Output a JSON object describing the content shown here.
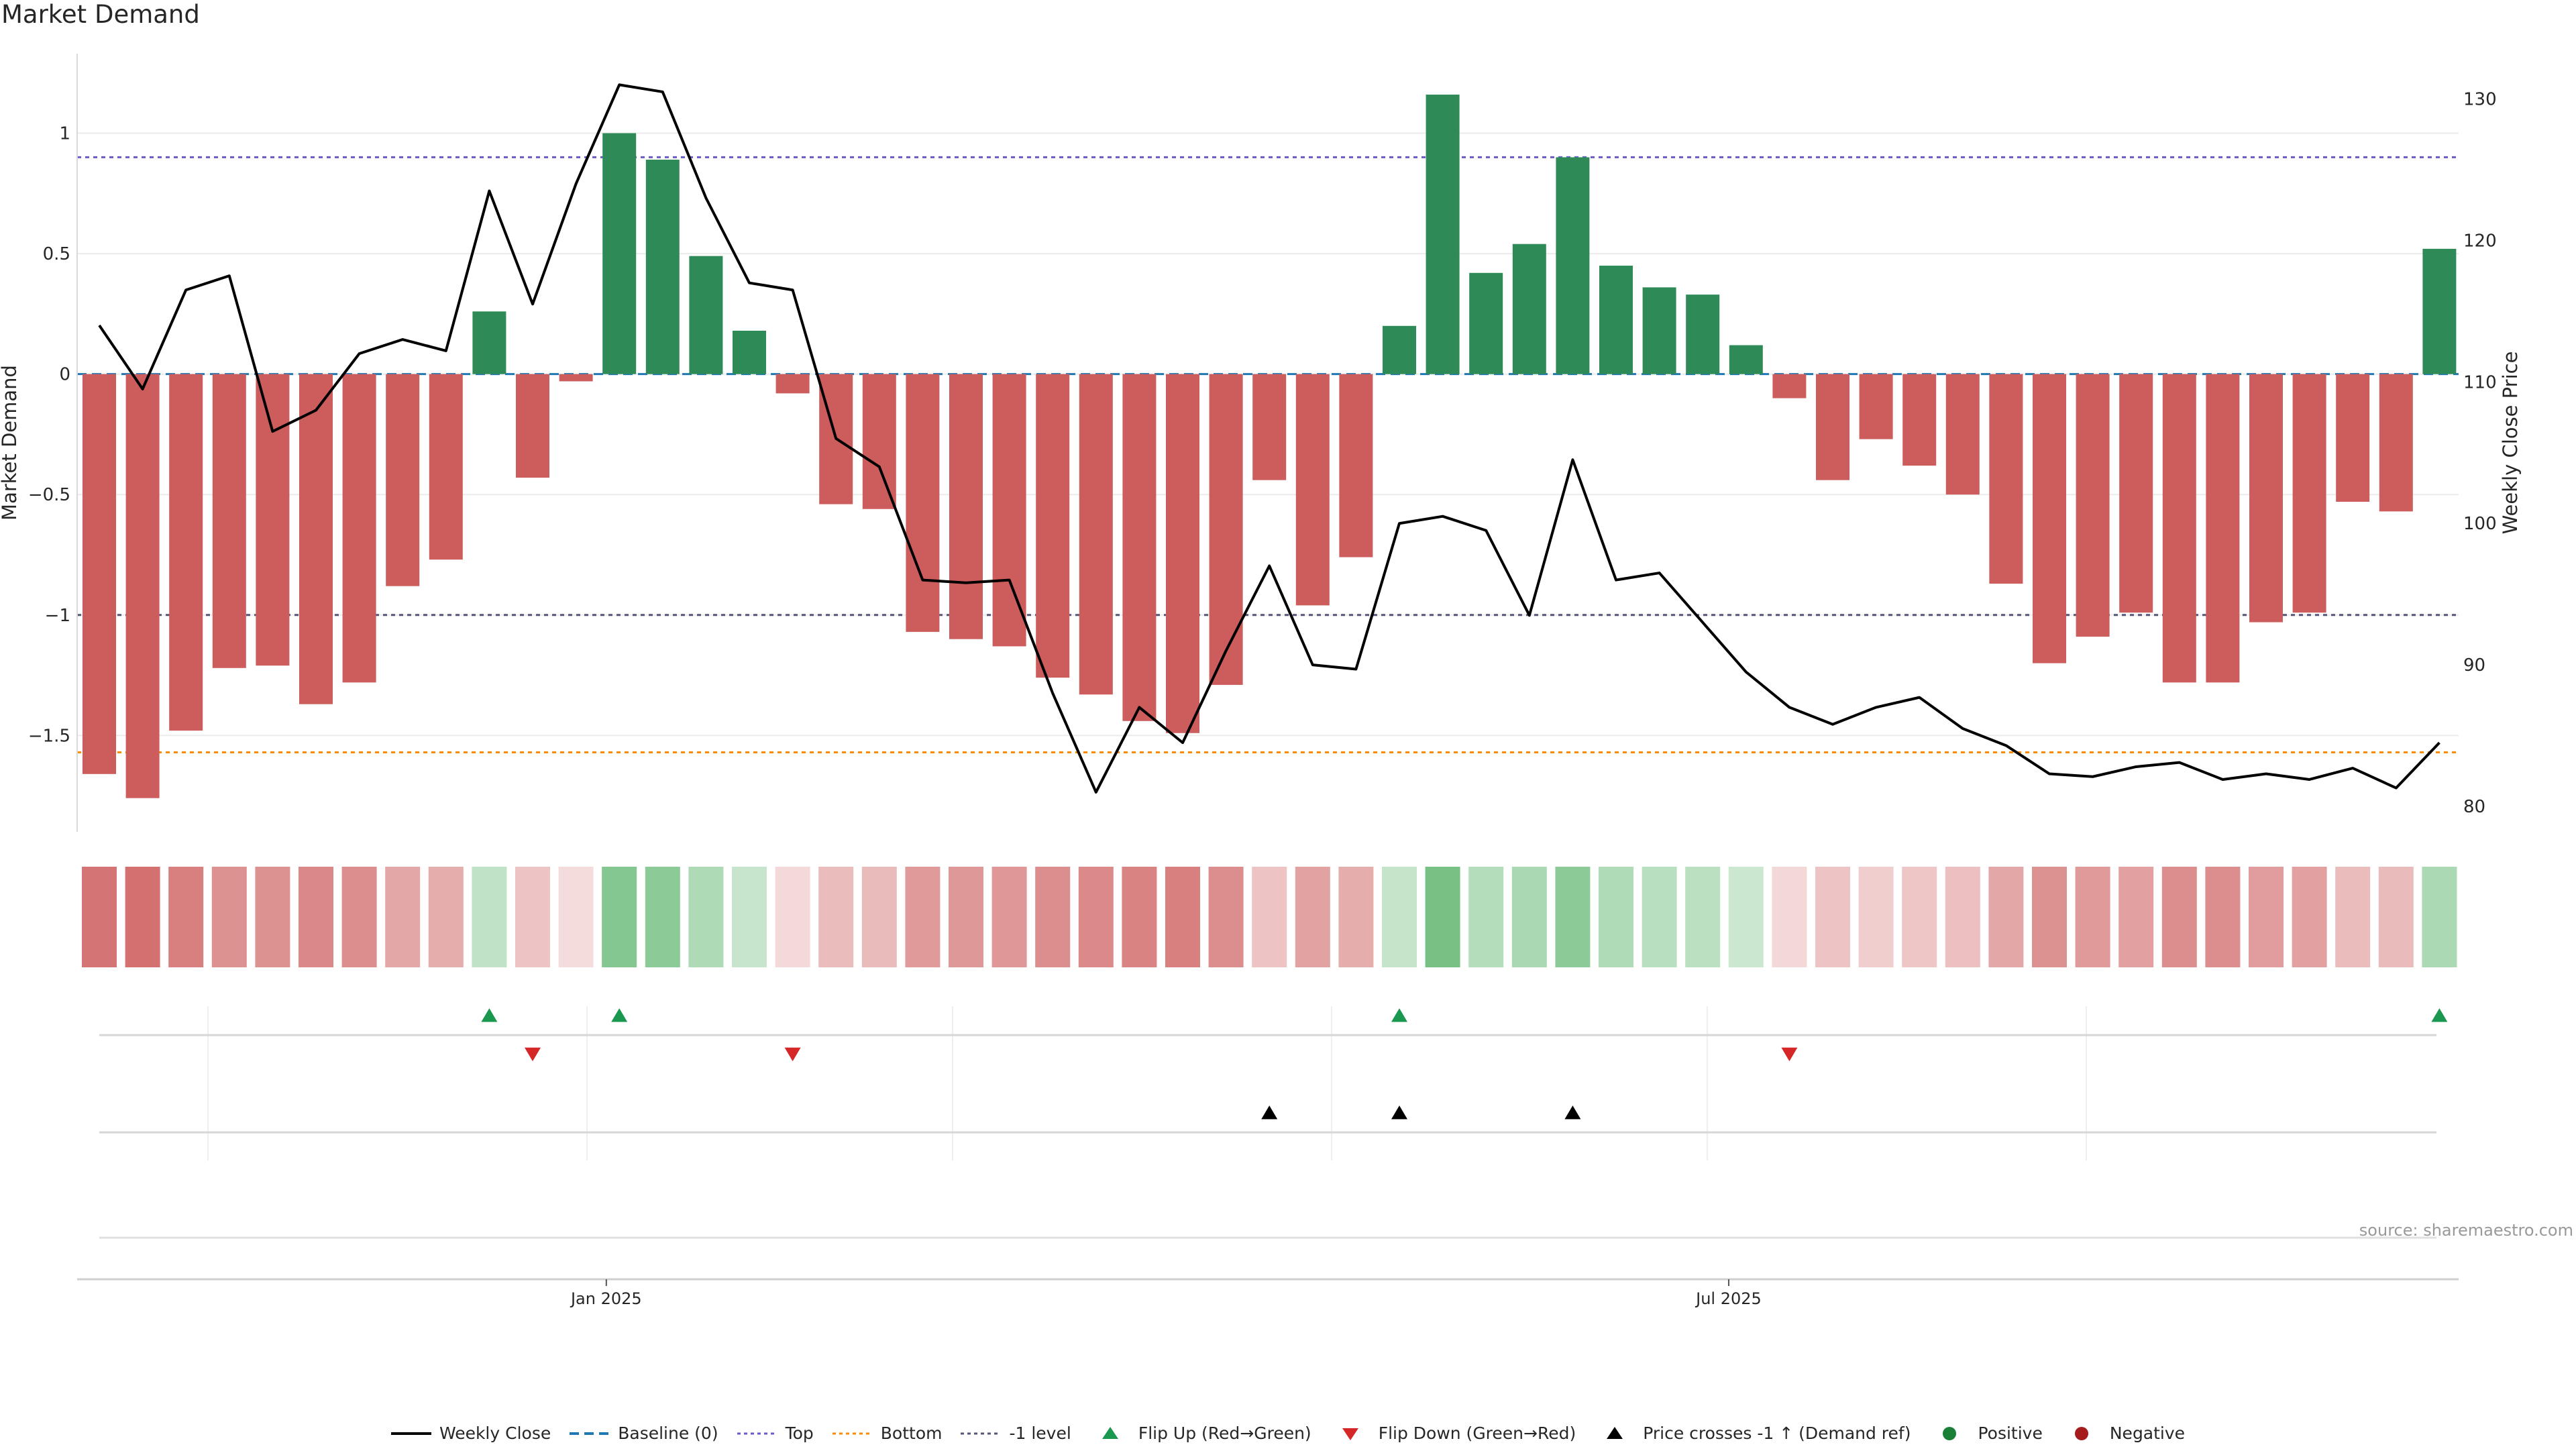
{
  "title": "Market Demand",
  "source": "source: sharemaestro.com",
  "colors": {
    "positive_bar": "#2e8b57",
    "negative_bar": "#cd5c5c",
    "price_line": "#000000",
    "baseline": "#1f77b4",
    "top_line": "#6a5acd",
    "bottom_line": "#ff8c00",
    "minus_one_line": "#555577",
    "flip_up": "#1a9850",
    "flip_down": "#d62728",
    "price_cross": "#000000",
    "positive_dot": "#1a7f37",
    "negative_dot": "#a61c1c"
  },
  "chart_data": {
    "type": "bar",
    "title": "Market Demand",
    "ylabel": "Market Demand",
    "y2label": "Weekly Close Price",
    "ylim": [
      -1.9,
      1.33
    ],
    "y2lim": [
      78.2,
      133.2
    ],
    "yticks": [
      "1",
      "0.5",
      "0",
      "−0.5",
      "−1",
      "−1.5"
    ],
    "yticks_values": [
      1,
      0.5,
      0,
      -0.5,
      -1,
      -1.5
    ],
    "y2ticks": [
      "130",
      "120",
      "110",
      "100",
      "90",
      "80"
    ],
    "y2ticks_values": [
      130,
      120,
      110,
      100,
      90,
      80
    ],
    "xticks": [
      {
        "label": "Jan 2025",
        "week_index": 11.7
      },
      {
        "label": "Jul 2025",
        "week_index": 37.6
      }
    ],
    "reference_levels": {
      "baseline": 0,
      "top": 0.9,
      "bottom": -1.57,
      "minus_one": -1
    },
    "demand": [
      -1.66,
      -1.76,
      -1.48,
      -1.22,
      -1.21,
      -1.37,
      -1.28,
      -0.88,
      -0.77,
      0.26,
      -0.43,
      -0.03,
      1.0,
      0.89,
      0.49,
      0.18,
      -0.08,
      -0.54,
      -0.56,
      -1.07,
      -1.1,
      -1.13,
      -1.26,
      -1.33,
      -1.44,
      -1.49,
      -1.29,
      -0.44,
      -0.96,
      -0.76,
      0.2,
      1.16,
      0.42,
      0.54,
      0.9,
      0.45,
      0.36,
      0.33,
      0.12,
      -0.1,
      -0.44,
      -0.27,
      -0.38,
      -0.5,
      -0.87,
      -1.2,
      -1.09,
      -0.99,
      -1.28,
      -1.28,
      -1.03,
      -0.99,
      -0.53,
      -0.57,
      0.52
    ],
    "price": [
      114,
      109.5,
      116.5,
      117.5,
      106.5,
      108,
      112,
      113,
      112.2,
      123.5,
      115.5,
      124,
      131,
      130.5,
      123,
      117,
      116.5,
      106,
      104,
      96,
      95.8,
      96,
      88,
      81,
      87,
      84.5,
      91,
      97,
      90,
      89.7,
      100,
      100.5,
      99.5,
      93.5,
      104.5,
      96,
      96.5,
      93,
      89.5,
      87,
      85.8,
      87,
      87.7,
      85.5,
      84.3,
      82.3,
      82.1,
      82.8,
      83.1,
      81.9,
      82.3,
      81.9,
      82.7,
      81.3,
      84.5
    ],
    "heat_strip": "per-week demand intensity (same values as bars)",
    "flip_up_weeks": [
      9,
      12,
      30,
      54
    ],
    "flip_down_weeks": [
      10,
      16,
      39
    ],
    "price_cross_weeks": [
      27,
      30,
      34
    ]
  },
  "legend": [
    {
      "key": "weekly_close",
      "label": "Weekly Close"
    },
    {
      "key": "baseline",
      "label": "Baseline (0)"
    },
    {
      "key": "top",
      "label": "Top"
    },
    {
      "key": "bottom",
      "label": "Bottom"
    },
    {
      "key": "minus_one",
      "label": "-1 level"
    },
    {
      "key": "flip_up",
      "label": "Flip Up (Red→Green)"
    },
    {
      "key": "flip_down",
      "label": "Flip Down (Green→Red)"
    },
    {
      "key": "price_cross",
      "label": "Price crosses -1 ↑ (Demand ref)"
    },
    {
      "key": "positive",
      "label": "Positive"
    },
    {
      "key": "negative",
      "label": "Negative"
    }
  ]
}
